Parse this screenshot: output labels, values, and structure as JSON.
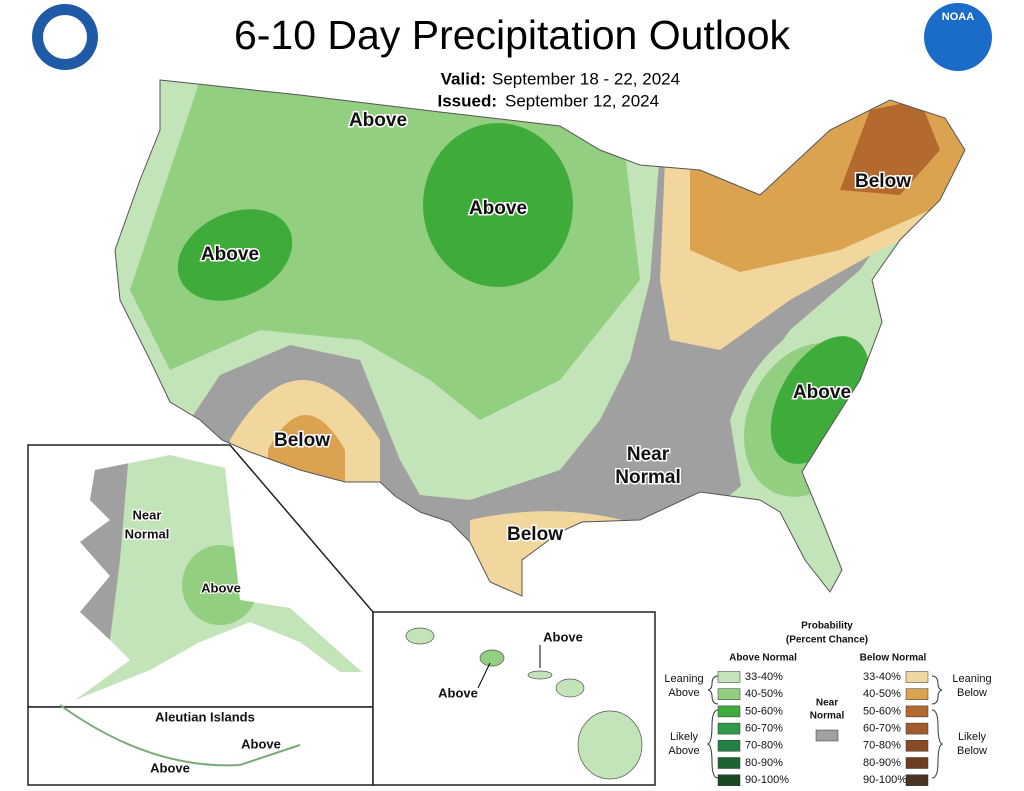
{
  "header": {
    "title": "6-10 Day Precipitation Outlook",
    "valid_label": "Valid:",
    "valid": "September 18 - 22, 2024",
    "issued_label": "Issued:",
    "issued": "September 12, 2024",
    "logo_text": "NOAA"
  },
  "conus": {
    "labels": [
      [
        "Above"
      ],
      [
        "Above"
      ],
      [
        "Above"
      ],
      [
        "Below"
      ],
      [
        "Below"
      ],
      [
        "Below"
      ],
      [
        "Near",
        "Normal"
      ],
      [
        "Above"
      ]
    ]
  },
  "alaska": {
    "labels": [
      [
        "Near",
        "Normal"
      ],
      [
        "Above"
      ]
    ]
  },
  "aleutians": {
    "title": "Aleutian Islands",
    "labels": [
      "Above",
      "Above"
    ]
  },
  "hawaii": {
    "labels": [
      "Above",
      "Above"
    ]
  },
  "legend": {
    "title": [
      "Probability",
      "(Percent Chance)"
    ],
    "above_heading": "Above Normal",
    "below_heading": "Below Normal",
    "near": [
      "Near",
      "Normal"
    ],
    "above_groups": [
      [
        "Leaning",
        "Above"
      ],
      [
        "Likely",
        "Above"
      ]
    ],
    "below_groups": [
      [
        "Leaning",
        "Below"
      ],
      [
        "Likely",
        "Below"
      ]
    ],
    "above_ranges": [
      "33-40%",
      "40-50%",
      "50-60%",
      "60-70%",
      "70-80%",
      "80-90%",
      "90-100%"
    ],
    "below_ranges": [
      "33-40%",
      "40-50%",
      "50-60%",
      "60-70%",
      "70-80%",
      "80-90%",
      "90-100%"
    ]
  }
}
